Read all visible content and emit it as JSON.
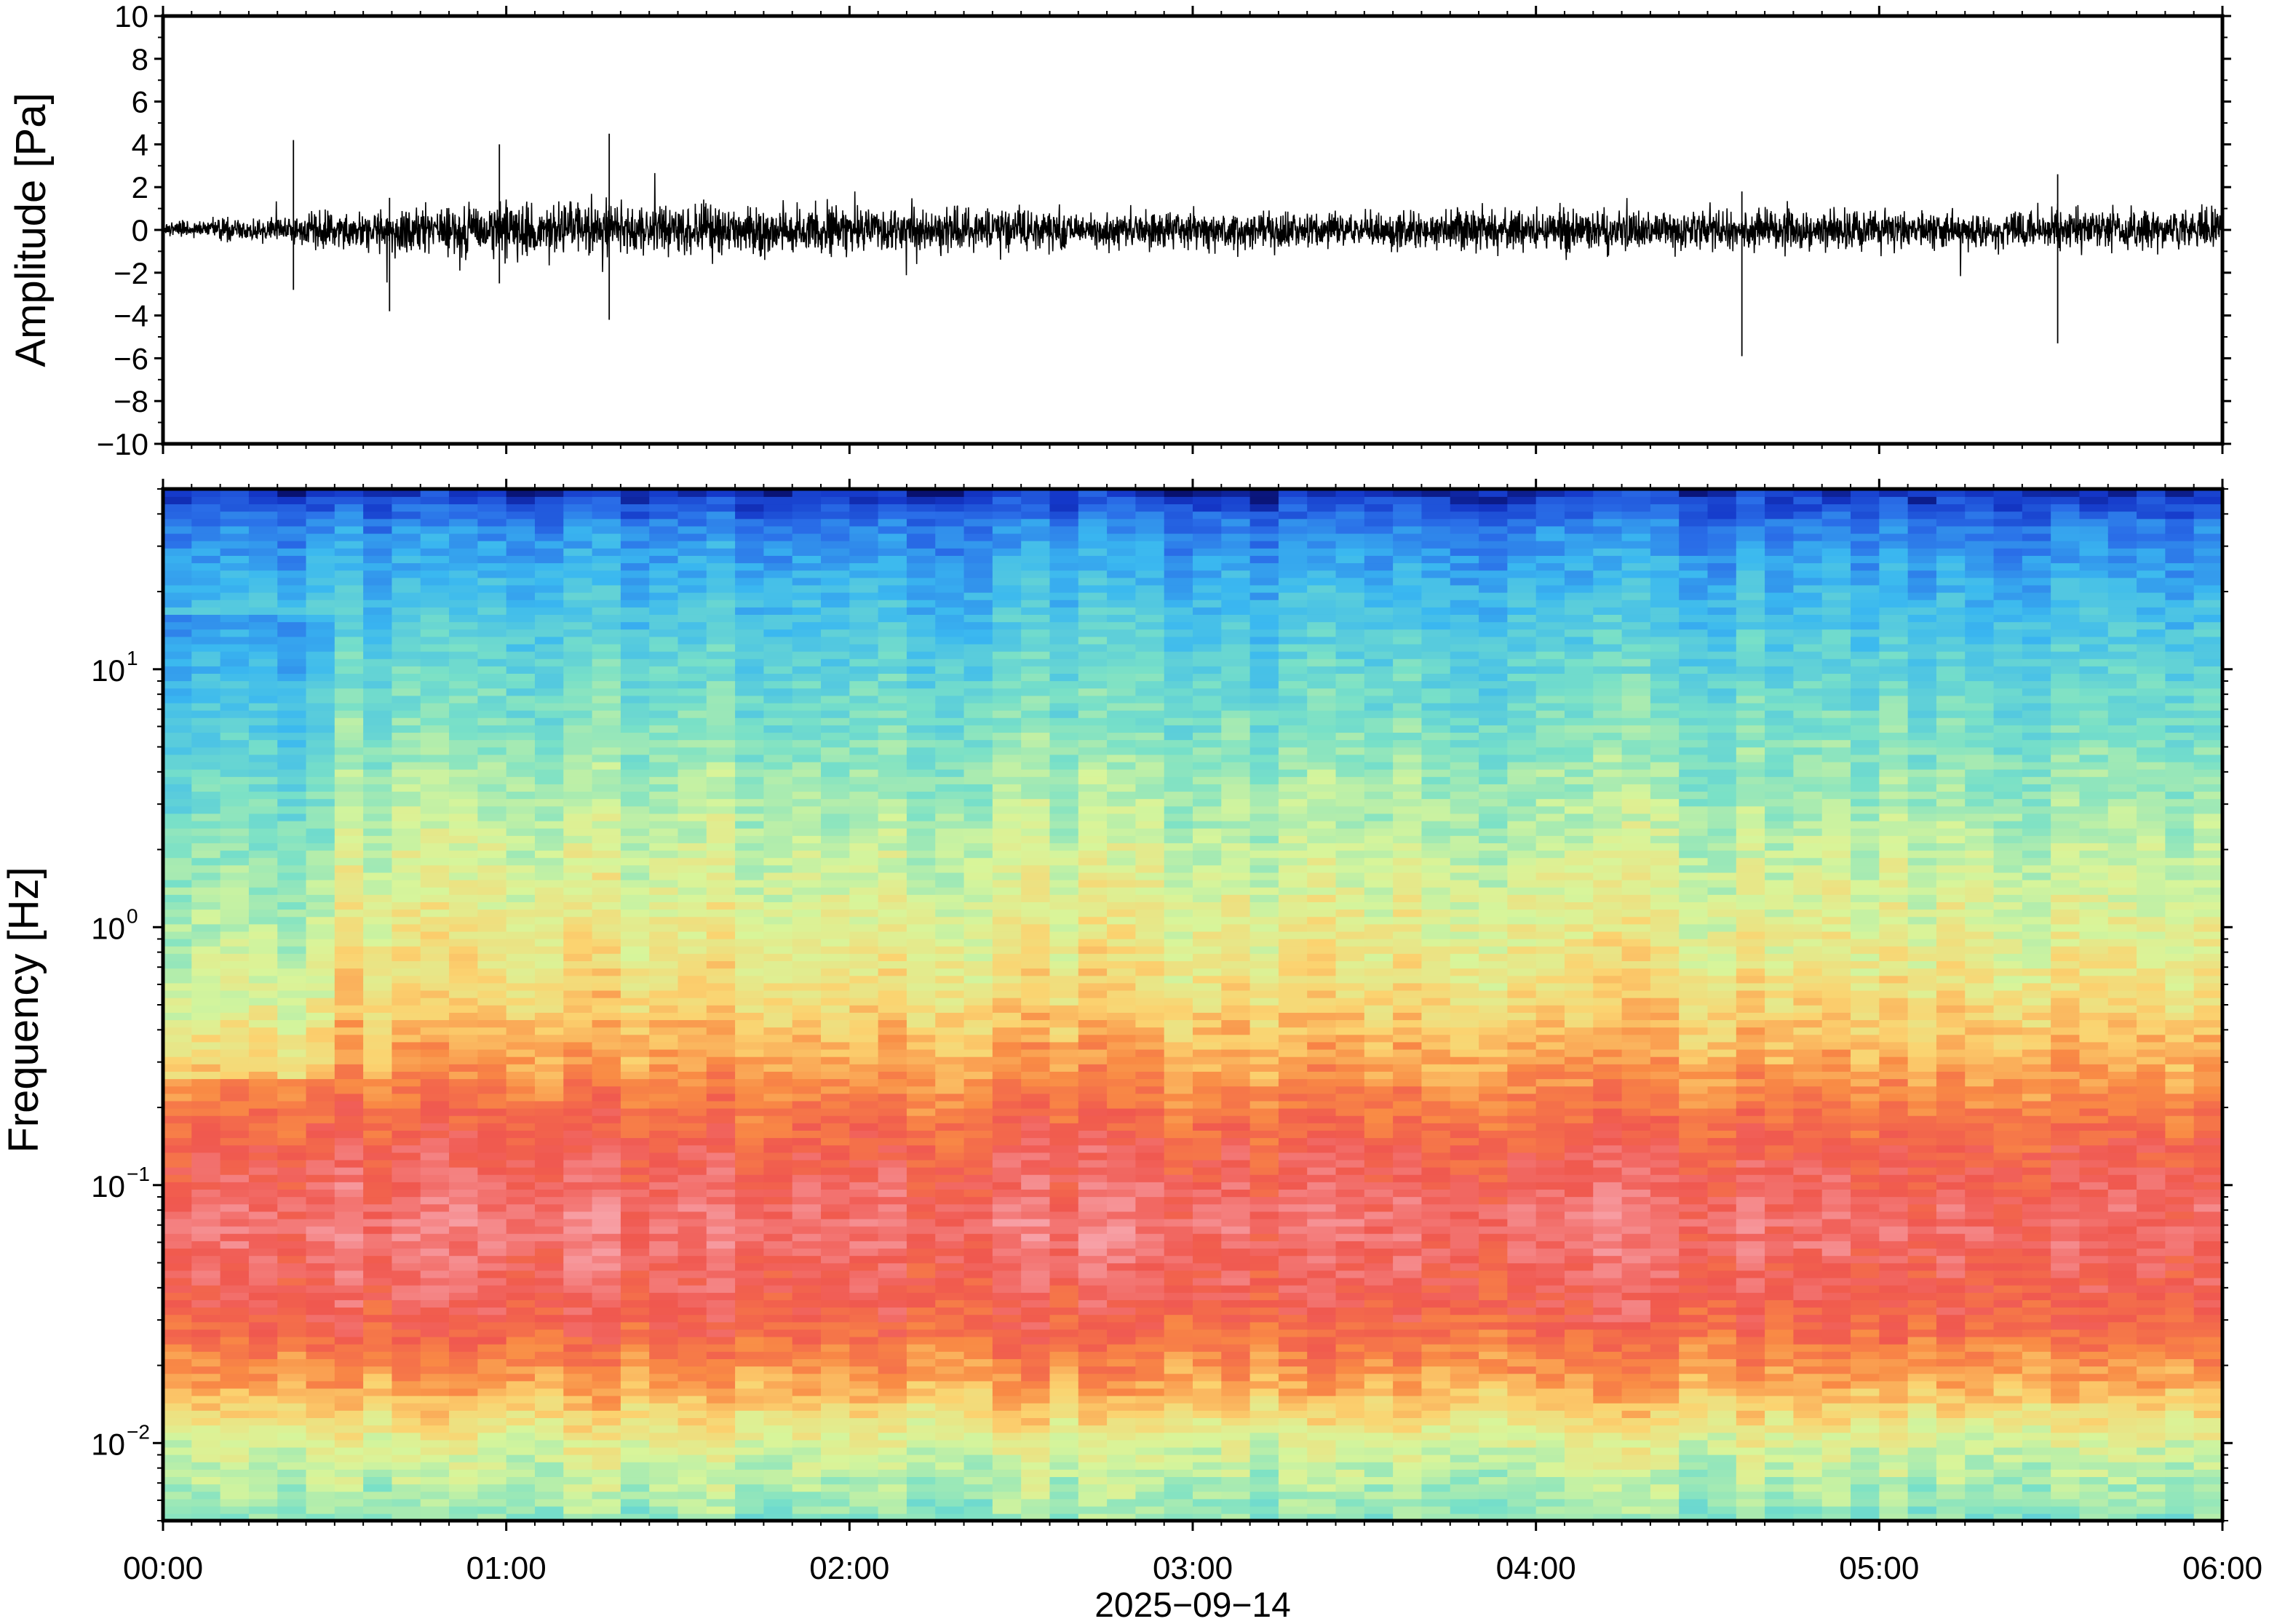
{
  "chart_data": [
    {
      "type": "line",
      "panel": "waveform",
      "ylabel": "Amplitude [Pa]",
      "ylim": [
        -10,
        10
      ],
      "yticks": [
        -10,
        -8,
        -6,
        -4,
        -2,
        0,
        2,
        4,
        6,
        8,
        10
      ],
      "ytick_labels": [
        "−10",
        "−8",
        "−6",
        "−4",
        "−2",
        "0",
        "2",
        "4",
        "6",
        "8",
        "10"
      ],
      "xlim_hours": [
        0,
        6
      ],
      "series": [
        {
          "color": "#000000",
          "envelope_hours": [
            0.0,
            0.5,
            1.0,
            1.5,
            2.0,
            2.5,
            3.0,
            3.5,
            4.0,
            4.5,
            5.0,
            5.5,
            6.0
          ],
          "envelope_amplitude": [
            0.4,
            1.0,
            1.6,
            1.4,
            1.3,
            1.1,
            1.1,
            1.0,
            1.3,
            1.2,
            1.1,
            1.1,
            1.2
          ],
          "spikes": [
            {
              "t": 0.38,
              "min": -2.8,
              "max": 4.2
            },
            {
              "t": 0.66,
              "min": -3.8,
              "max": 1.5
            },
            {
              "t": 0.98,
              "min": -2.5,
              "max": 4.0
            },
            {
              "t": 1.3,
              "min": -4.2,
              "max": 4.5
            },
            {
              "t": 4.6,
              "min": -5.9,
              "max": 1.8
            },
            {
              "t": 5.52,
              "min": -5.3,
              "max": 2.6
            }
          ]
        }
      ]
    },
    {
      "type": "heatmap",
      "panel": "spectrogram",
      "ylabel": "Frequency [Hz]",
      "yscale": "log",
      "ylim": [
        0.005,
        50
      ],
      "yticks": [
        0.01,
        0.1,
        1,
        10
      ],
      "ytick_mantissa": [
        "10",
        "10",
        "10",
        "10"
      ],
      "ytick_exponents": [
        "−2",
        "−1",
        "0",
        "1"
      ],
      "colormap": "rainbow (blue = low power, red/pink = high power)",
      "colors": [
        "#0a1a8c",
        "#1f5de8",
        "#3ab8f0",
        "#7fe0c8",
        "#d8f59a",
        "#fbd370",
        "#f98b45",
        "#f0584f",
        "#f58a8f"
      ],
      "column_minutes": 5,
      "dominant_band_hz": [
        0.03,
        0.3
      ],
      "xlim_hours": [
        0,
        6
      ]
    }
  ],
  "x_axis": {
    "tick_labels": [
      "00:00",
      "01:00",
      "02:00",
      "03:00",
      "04:00",
      "05:00",
      "06:00"
    ],
    "date_label": "2025−09−14"
  }
}
